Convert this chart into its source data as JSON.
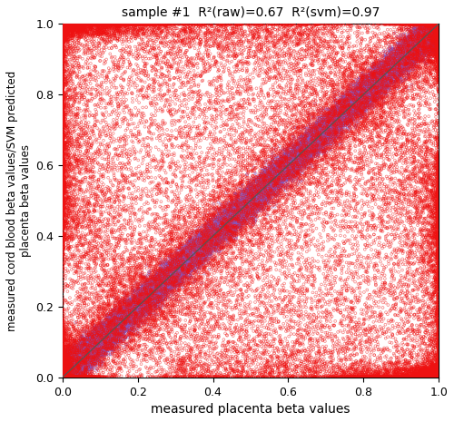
{
  "title": "sample #1  R²(raw)=0.67  R²(svm)=0.97",
  "xlabel": "measured placenta beta values",
  "ylabel": "measured cord blood beta values/SVM predicted\nplacenta beta values",
  "xlim": [
    0.0,
    1.0
  ],
  "ylim": [
    0.0,
    1.0
  ],
  "xticks": [
    0.0,
    0.2,
    0.4,
    0.6,
    0.8,
    1.0
  ],
  "yticks": [
    0.0,
    0.2,
    0.4,
    0.6,
    0.8,
    1.0
  ],
  "n_points": 40000,
  "red_color": "#EE1111",
  "purple_color": "#8855BB",
  "marker_size_red": 4,
  "marker_size_purple": 4,
  "alpha_red": 0.55,
  "alpha_purple": 0.75,
  "linewidth_red": 0.5,
  "linewidth_purple": 0.4,
  "background_color": "#ffffff",
  "seed": 42
}
